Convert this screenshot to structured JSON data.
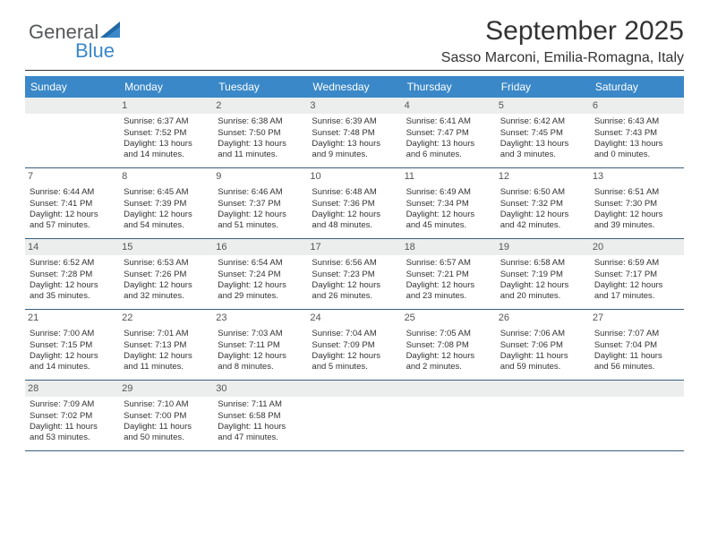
{
  "logo": {
    "text1": "General",
    "text2": "Blue"
  },
  "header": {
    "title": "September 2025",
    "subtitle": "Sasso Marconi, Emilia-Romagna, Italy"
  },
  "colors": {
    "header_bg": "#3a88c8",
    "header_fg": "#ffffff",
    "row_border": "#3a5f7d",
    "alt_daynum_bg": "#eceeee",
    "text": "#333333"
  },
  "weekdays": [
    "Sunday",
    "Monday",
    "Tuesday",
    "Wednesday",
    "Thursday",
    "Friday",
    "Saturday"
  ],
  "days": [
    {
      "n": "",
      "sr": "",
      "ss": "",
      "d1": "",
      "d2": ""
    },
    {
      "n": "1",
      "sr": "Sunrise: 6:37 AM",
      "ss": "Sunset: 7:52 PM",
      "d1": "Daylight: 13 hours",
      "d2": "and 14 minutes."
    },
    {
      "n": "2",
      "sr": "Sunrise: 6:38 AM",
      "ss": "Sunset: 7:50 PM",
      "d1": "Daylight: 13 hours",
      "d2": "and 11 minutes."
    },
    {
      "n": "3",
      "sr": "Sunrise: 6:39 AM",
      "ss": "Sunset: 7:48 PM",
      "d1": "Daylight: 13 hours",
      "d2": "and 9 minutes."
    },
    {
      "n": "4",
      "sr": "Sunrise: 6:41 AM",
      "ss": "Sunset: 7:47 PM",
      "d1": "Daylight: 13 hours",
      "d2": "and 6 minutes."
    },
    {
      "n": "5",
      "sr": "Sunrise: 6:42 AM",
      "ss": "Sunset: 7:45 PM",
      "d1": "Daylight: 13 hours",
      "d2": "and 3 minutes."
    },
    {
      "n": "6",
      "sr": "Sunrise: 6:43 AM",
      "ss": "Sunset: 7:43 PM",
      "d1": "Daylight: 13 hours",
      "d2": "and 0 minutes."
    },
    {
      "n": "7",
      "sr": "Sunrise: 6:44 AM",
      "ss": "Sunset: 7:41 PM",
      "d1": "Daylight: 12 hours",
      "d2": "and 57 minutes."
    },
    {
      "n": "8",
      "sr": "Sunrise: 6:45 AM",
      "ss": "Sunset: 7:39 PM",
      "d1": "Daylight: 12 hours",
      "d2": "and 54 minutes."
    },
    {
      "n": "9",
      "sr": "Sunrise: 6:46 AM",
      "ss": "Sunset: 7:37 PM",
      "d1": "Daylight: 12 hours",
      "d2": "and 51 minutes."
    },
    {
      "n": "10",
      "sr": "Sunrise: 6:48 AM",
      "ss": "Sunset: 7:36 PM",
      "d1": "Daylight: 12 hours",
      "d2": "and 48 minutes."
    },
    {
      "n": "11",
      "sr": "Sunrise: 6:49 AM",
      "ss": "Sunset: 7:34 PM",
      "d1": "Daylight: 12 hours",
      "d2": "and 45 minutes."
    },
    {
      "n": "12",
      "sr": "Sunrise: 6:50 AM",
      "ss": "Sunset: 7:32 PM",
      "d1": "Daylight: 12 hours",
      "d2": "and 42 minutes."
    },
    {
      "n": "13",
      "sr": "Sunrise: 6:51 AM",
      "ss": "Sunset: 7:30 PM",
      "d1": "Daylight: 12 hours",
      "d2": "and 39 minutes."
    },
    {
      "n": "14",
      "sr": "Sunrise: 6:52 AM",
      "ss": "Sunset: 7:28 PM",
      "d1": "Daylight: 12 hours",
      "d2": "and 35 minutes."
    },
    {
      "n": "15",
      "sr": "Sunrise: 6:53 AM",
      "ss": "Sunset: 7:26 PM",
      "d1": "Daylight: 12 hours",
      "d2": "and 32 minutes."
    },
    {
      "n": "16",
      "sr": "Sunrise: 6:54 AM",
      "ss": "Sunset: 7:24 PM",
      "d1": "Daylight: 12 hours",
      "d2": "and 29 minutes."
    },
    {
      "n": "17",
      "sr": "Sunrise: 6:56 AM",
      "ss": "Sunset: 7:23 PM",
      "d1": "Daylight: 12 hours",
      "d2": "and 26 minutes."
    },
    {
      "n": "18",
      "sr": "Sunrise: 6:57 AM",
      "ss": "Sunset: 7:21 PM",
      "d1": "Daylight: 12 hours",
      "d2": "and 23 minutes."
    },
    {
      "n": "19",
      "sr": "Sunrise: 6:58 AM",
      "ss": "Sunset: 7:19 PM",
      "d1": "Daylight: 12 hours",
      "d2": "and 20 minutes."
    },
    {
      "n": "20",
      "sr": "Sunrise: 6:59 AM",
      "ss": "Sunset: 7:17 PM",
      "d1": "Daylight: 12 hours",
      "d2": "and 17 minutes."
    },
    {
      "n": "21",
      "sr": "Sunrise: 7:00 AM",
      "ss": "Sunset: 7:15 PM",
      "d1": "Daylight: 12 hours",
      "d2": "and 14 minutes."
    },
    {
      "n": "22",
      "sr": "Sunrise: 7:01 AM",
      "ss": "Sunset: 7:13 PM",
      "d1": "Daylight: 12 hours",
      "d2": "and 11 minutes."
    },
    {
      "n": "23",
      "sr": "Sunrise: 7:03 AM",
      "ss": "Sunset: 7:11 PM",
      "d1": "Daylight: 12 hours",
      "d2": "and 8 minutes."
    },
    {
      "n": "24",
      "sr": "Sunrise: 7:04 AM",
      "ss": "Sunset: 7:09 PM",
      "d1": "Daylight: 12 hours",
      "d2": "and 5 minutes."
    },
    {
      "n": "25",
      "sr": "Sunrise: 7:05 AM",
      "ss": "Sunset: 7:08 PM",
      "d1": "Daylight: 12 hours",
      "d2": "and 2 minutes."
    },
    {
      "n": "26",
      "sr": "Sunrise: 7:06 AM",
      "ss": "Sunset: 7:06 PM",
      "d1": "Daylight: 11 hours",
      "d2": "and 59 minutes."
    },
    {
      "n": "27",
      "sr": "Sunrise: 7:07 AM",
      "ss": "Sunset: 7:04 PM",
      "d1": "Daylight: 11 hours",
      "d2": "and 56 minutes."
    },
    {
      "n": "28",
      "sr": "Sunrise: 7:09 AM",
      "ss": "Sunset: 7:02 PM",
      "d1": "Daylight: 11 hours",
      "d2": "and 53 minutes."
    },
    {
      "n": "29",
      "sr": "Sunrise: 7:10 AM",
      "ss": "Sunset: 7:00 PM",
      "d1": "Daylight: 11 hours",
      "d2": "and 50 minutes."
    },
    {
      "n": "30",
      "sr": "Sunrise: 7:11 AM",
      "ss": "Sunset: 6:58 PM",
      "d1": "Daylight: 11 hours",
      "d2": "and 47 minutes."
    },
    {
      "n": "",
      "sr": "",
      "ss": "",
      "d1": "",
      "d2": ""
    },
    {
      "n": "",
      "sr": "",
      "ss": "",
      "d1": "",
      "d2": ""
    },
    {
      "n": "",
      "sr": "",
      "ss": "",
      "d1": "",
      "d2": ""
    },
    {
      "n": "",
      "sr": "",
      "ss": "",
      "d1": "",
      "d2": ""
    }
  ]
}
